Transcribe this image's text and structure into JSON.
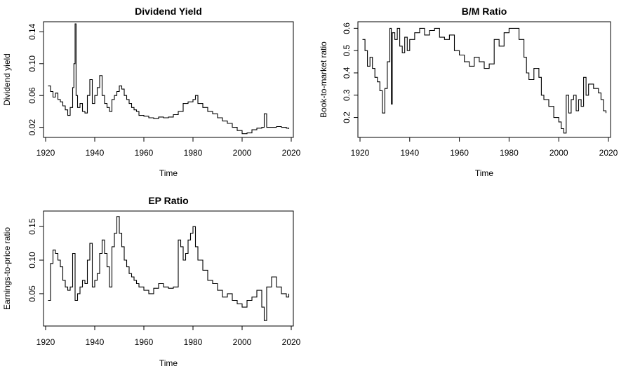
{
  "chart_data": [
    {
      "id": "dividend",
      "type": "line",
      "title": "Dividend Yield",
      "xlabel": "Time",
      "ylabel": "Dividend yield",
      "xlim": [
        1920,
        2020
      ],
      "ylim": [
        0.01,
        0.15
      ],
      "x_ticks": [
        "1920",
        "1940",
        "1960",
        "1980",
        "2000",
        "2020"
      ],
      "y_ticks": [
        "0.02",
        "0.06",
        "0.10",
        "0.14"
      ],
      "series": [
        {
          "name": "Dividend yield",
          "x": [
            1921,
            1922,
            1923,
            1924,
            1925,
            1926,
            1927,
            1928,
            1929,
            1930,
            1931,
            1931.5,
            1932,
            1932.4,
            1933,
            1934,
            1935,
            1936,
            1937,
            1938,
            1939,
            1940,
            1941,
            1942,
            1943,
            1944,
            1945,
            1946,
            1947,
            1948,
            1949,
            1950,
            1951,
            1952,
            1953,
            1954,
            1955,
            1956,
            1957,
            1958,
            1960,
            1962,
            1964,
            1966,
            1968,
            1970,
            1972,
            1974,
            1976,
            1978,
            1980,
            1981,
            1982,
            1984,
            1986,
            1988,
            1990,
            1992,
            1994,
            1996,
            1998,
            2000,
            2002,
            2004,
            2006,
            2008,
            2009,
            2010,
            2012,
            2014,
            2016,
            2018,
            2019
          ],
          "values": [
            0.072,
            0.065,
            0.058,
            0.063,
            0.055,
            0.052,
            0.047,
            0.042,
            0.035,
            0.045,
            0.07,
            0.1,
            0.15,
            0.06,
            0.045,
            0.05,
            0.04,
            0.038,
            0.06,
            0.08,
            0.05,
            0.06,
            0.07,
            0.085,
            0.06,
            0.05,
            0.045,
            0.04,
            0.055,
            0.06,
            0.065,
            0.072,
            0.068,
            0.06,
            0.055,
            0.05,
            0.045,
            0.042,
            0.04,
            0.035,
            0.034,
            0.032,
            0.031,
            0.033,
            0.032,
            0.033,
            0.036,
            0.04,
            0.05,
            0.052,
            0.055,
            0.06,
            0.05,
            0.045,
            0.04,
            0.037,
            0.032,
            0.028,
            0.025,
            0.02,
            0.016,
            0.012,
            0.013,
            0.017,
            0.019,
            0.02,
            0.037,
            0.02,
            0.02,
            0.021,
            0.02,
            0.019,
            0.018
          ]
        }
      ]
    },
    {
      "id": "bm",
      "type": "line",
      "title": "B/M Ratio",
      "xlabel": "Time",
      "ylabel": "Book-to-market ratio",
      "xlim": [
        1920,
        2020
      ],
      "ylim": [
        0.12,
        0.62
      ],
      "x_ticks": [
        "1920",
        "1940",
        "1960",
        "1980",
        "2000",
        "2020"
      ],
      "y_ticks": [
        "0.2",
        "0.3",
        "0.4",
        "0.5",
        "0.6"
      ],
      "series": [
        {
          "name": "Book-to-market ratio",
          "x": [
            1921,
            1922,
            1923,
            1924,
            1925,
            1926,
            1927,
            1928,
            1929,
            1930,
            1931,
            1932,
            1932.6,
            1933,
            1934,
            1935,
            1936,
            1937,
            1938,
            1939,
            1940,
            1942,
            1944,
            1946,
            1948,
            1950,
            1952,
            1954,
            1956,
            1958,
            1960,
            1962,
            1964,
            1966,
            1968,
            1970,
            1972,
            1974,
            1976,
            1978,
            1980,
            1982,
            1983,
            1984,
            1986,
            1987,
            1988,
            1990,
            1992,
            1993,
            1994,
            1996,
            1998,
            2000,
            2001,
            2002,
            2003,
            2004,
            2005,
            2006,
            2007,
            2008,
            2009,
            2010,
            2011,
            2012,
            2014,
            2016,
            2017,
            2018,
            2019
          ],
          "values": [
            0.55,
            0.5,
            0.43,
            0.47,
            0.42,
            0.38,
            0.36,
            0.32,
            0.22,
            0.33,
            0.45,
            0.6,
            0.26,
            0.58,
            0.55,
            0.6,
            0.52,
            0.49,
            0.56,
            0.5,
            0.55,
            0.58,
            0.6,
            0.57,
            0.59,
            0.6,
            0.56,
            0.55,
            0.57,
            0.5,
            0.48,
            0.45,
            0.43,
            0.47,
            0.45,
            0.42,
            0.44,
            0.55,
            0.52,
            0.58,
            0.6,
            0.6,
            0.6,
            0.55,
            0.47,
            0.4,
            0.37,
            0.42,
            0.38,
            0.3,
            0.28,
            0.25,
            0.2,
            0.18,
            0.15,
            0.13,
            0.3,
            0.22,
            0.28,
            0.3,
            0.23,
            0.28,
            0.25,
            0.38,
            0.3,
            0.35,
            0.33,
            0.31,
            0.28,
            0.23,
            0.22
          ]
        }
      ]
    },
    {
      "id": "ep",
      "type": "line",
      "title": "EP Ratio",
      "xlabel": "Time",
      "ylabel": "Earnings-to-price ratio",
      "xlim": [
        1920,
        2020
      ],
      "ylim": [
        0.005,
        0.17
      ],
      "x_ticks": [
        "1920",
        "1940",
        "1960",
        "1980",
        "2000",
        "2020"
      ],
      "y_ticks": [
        "0.05",
        "0.10",
        "0.15"
      ],
      "series": [
        {
          "name": "Earnings-to-price ratio",
          "x": [
            1921,
            1922,
            1923,
            1924,
            1925,
            1926,
            1927,
            1928,
            1929,
            1930,
            1931,
            1932,
            1933,
            1934,
            1935,
            1936,
            1937,
            1938,
            1939,
            1940,
            1941,
            1942,
            1943,
            1944,
            1945,
            1946,
            1947,
            1948,
            1949,
            1950,
            1951,
            1952,
            1953,
            1954,
            1955,
            1956,
            1957,
            1958,
            1960,
            1962,
            1964,
            1966,
            1968,
            1970,
            1972,
            1974,
            1975,
            1976,
            1977,
            1978,
            1979,
            1980,
            1981,
            1982,
            1984,
            1986,
            1988,
            1990,
            1992,
            1994,
            1996,
            1998,
            2000,
            2002,
            2004,
            2006,
            2008,
            2009,
            2010,
            2012,
            2014,
            2016,
            2018,
            2019
          ],
          "values": [
            0.04,
            0.095,
            0.115,
            0.11,
            0.1,
            0.09,
            0.07,
            0.06,
            0.055,
            0.06,
            0.11,
            0.04,
            0.05,
            0.06,
            0.07,
            0.065,
            0.1,
            0.125,
            0.06,
            0.07,
            0.08,
            0.11,
            0.13,
            0.11,
            0.09,
            0.06,
            0.12,
            0.14,
            0.165,
            0.14,
            0.12,
            0.1,
            0.09,
            0.08,
            0.075,
            0.07,
            0.065,
            0.06,
            0.055,
            0.05,
            0.058,
            0.065,
            0.06,
            0.058,
            0.06,
            0.13,
            0.12,
            0.1,
            0.11,
            0.13,
            0.14,
            0.15,
            0.12,
            0.1,
            0.085,
            0.07,
            0.065,
            0.055,
            0.045,
            0.05,
            0.04,
            0.035,
            0.03,
            0.04,
            0.045,
            0.055,
            0.03,
            0.01,
            0.06,
            0.075,
            0.06,
            0.05,
            0.045,
            0.05
          ]
        }
      ]
    }
  ]
}
